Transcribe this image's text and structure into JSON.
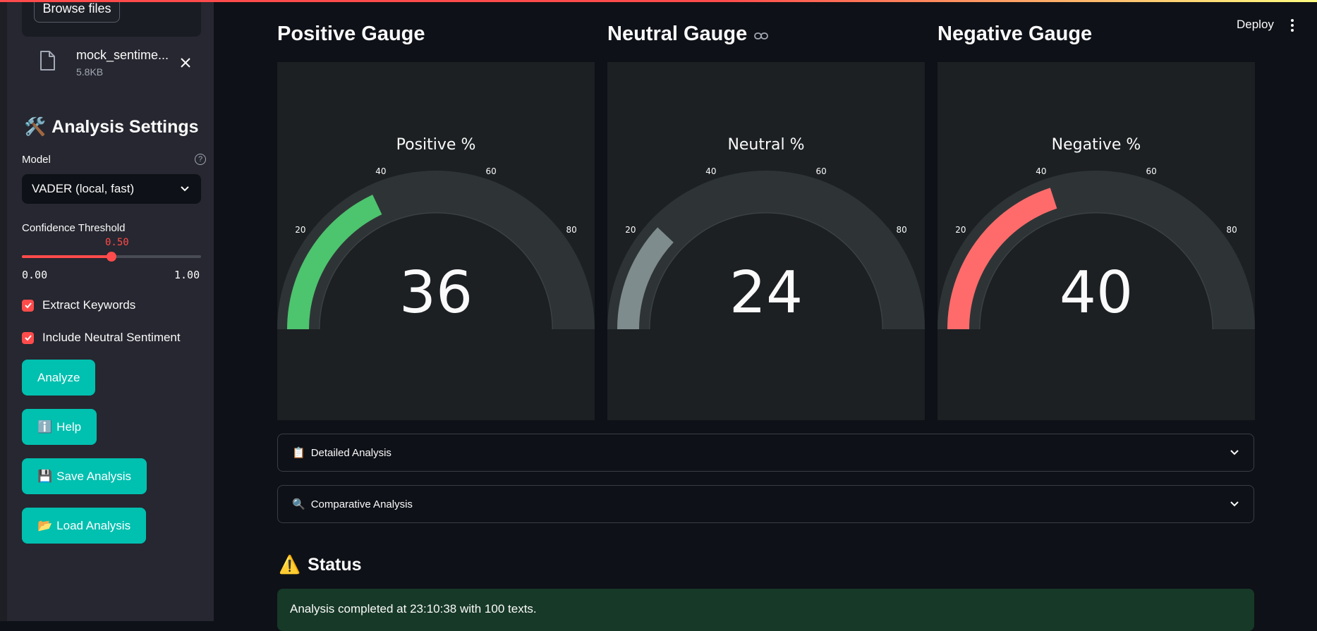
{
  "sidebar": {
    "uploader": {
      "browse_label": "Browse files"
    },
    "file": {
      "name": "mock_sentime...",
      "size": "5.8KB"
    },
    "settings_title": "Analysis Settings",
    "model": {
      "label": "Model",
      "selected": "VADER (local, fast)"
    },
    "confidence": {
      "label": "Confidence Threshold",
      "value": "0.50",
      "min": "0.00",
      "max": "1.00",
      "fraction": 0.5
    },
    "checkboxes": [
      {
        "label": "Extract Keywords",
        "checked": true
      },
      {
        "label": "Include Neutral Sentiment",
        "checked": true
      }
    ],
    "buttons": {
      "analyze": "Analyze",
      "help": "Help",
      "save": "Save Analysis",
      "load": "Load Analysis"
    }
  },
  "header": {
    "deploy_label": "Deploy"
  },
  "gauges": [
    {
      "heading": "Positive Gauge",
      "title": "Positive %",
      "value": 36,
      "display": "36",
      "color": "#4dc46e",
      "ticks": [
        "20",
        "40",
        "60",
        "80"
      ],
      "min": 0,
      "max": 100
    },
    {
      "heading": "Neutral Gauge",
      "title": "Neutral %",
      "value": 24,
      "display": "24",
      "color": "#7f8c8d",
      "ticks": [
        "20",
        "40",
        "60",
        "80"
      ],
      "min": 0,
      "max": 100
    },
    {
      "heading": "Negative Gauge",
      "title": "Negative %",
      "value": 40,
      "display": "40",
      "color": "#ff6b6b",
      "ticks": [
        "20",
        "40",
        "60",
        "80"
      ],
      "min": 0,
      "max": 100
    }
  ],
  "expanders": [
    {
      "label": "Detailed Analysis"
    },
    {
      "label": "Comparative Analysis"
    }
  ],
  "status": {
    "title": "Status",
    "message": "Analysis completed at 23:10:38 with 100 texts."
  },
  "colors": {
    "accent": "#ff4b4b",
    "teal": "#00c0b0",
    "success_bg": "#173928"
  }
}
